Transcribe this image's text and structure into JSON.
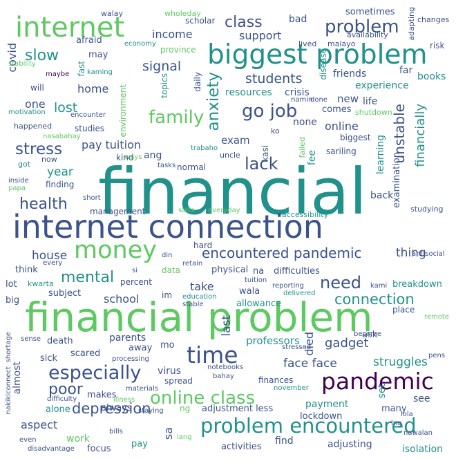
{
  "word_cloud": {
    "background": "#ffffff",
    "palette": [
      "#440154",
      "#3b528b",
      "#21918c",
      "#5ec962",
      "#fde725"
    ],
    "words": [
      {
        "text": "financial",
        "color": "#21918c"
      },
      {
        "text": "internet connection",
        "color": "#3b528b"
      },
      {
        "text": "financial problem",
        "color": "#5ec962"
      },
      {
        "text": "biggest problem",
        "color": "#21918c"
      },
      {
        "text": "internet",
        "color": "#5ec962"
      },
      {
        "text": "problem encountered",
        "color": "#21918c"
      },
      {
        "text": "pandemic",
        "color": "#440154"
      },
      {
        "text": "money",
        "color": "#5ec962"
      },
      {
        "text": "time",
        "color": "#3b528b"
      },
      {
        "text": "online class",
        "color": "#5ec962"
      },
      {
        "text": "especially",
        "color": "#3b528b"
      },
      {
        "text": "encountered pandemic",
        "color": "#3b528b"
      },
      {
        "text": "go job",
        "color": "#3b528b"
      },
      {
        "text": "family",
        "color": "#5ec962"
      },
      {
        "text": "anxiety",
        "color": "#21918c"
      },
      {
        "text": "lack",
        "color": "#3b528b"
      },
      {
        "text": "problem",
        "color": "#3b528b"
      },
      {
        "text": "class",
        "color": "#3b528b"
      },
      {
        "text": "unstable",
        "color": "#3b528b"
      },
      {
        "text": "financially",
        "color": "#21918c"
      },
      {
        "text": "need",
        "color": "#3b528b"
      },
      {
        "text": "connection",
        "color": "#21918c"
      },
      {
        "text": "stress",
        "color": "#3b528b"
      },
      {
        "text": "health",
        "color": "#3b528b"
      },
      {
        "text": "mental",
        "color": "#21918c"
      },
      {
        "text": "poor",
        "color": "#3b528b"
      },
      {
        "text": "depression",
        "color": "#3b528b"
      },
      {
        "text": "slow",
        "color": "#21918c"
      },
      {
        "text": "students",
        "color": "#3b528b"
      },
      {
        "text": "signal",
        "color": "#3b528b"
      },
      {
        "text": "house",
        "color": "#3b528b"
      },
      {
        "text": "lost",
        "color": "#21918c"
      },
      {
        "text": "gadget",
        "color": "#3b528b"
      },
      {
        "text": "face face",
        "color": "#3b528b"
      },
      {
        "text": "struggles",
        "color": "#21918c"
      },
      {
        "text": "thing",
        "color": "#3b528b"
      },
      {
        "text": "last",
        "color": "#3b528b"
      },
      {
        "text": "died",
        "color": "#3b528b"
      },
      {
        "text": "sa",
        "color": "#3b528b"
      },
      {
        "text": "covid",
        "color": "#3b528b"
      },
      {
        "text": "pay tuition",
        "color": "#3b528b"
      },
      {
        "text": "year",
        "color": "#21918c"
      },
      {
        "text": "online",
        "color": "#3b528b"
      },
      {
        "text": "exam",
        "color": "#3b528b"
      },
      {
        "text": "support",
        "color": "#3b528b"
      },
      {
        "text": "income",
        "color": "#3b528b"
      },
      {
        "text": "home",
        "color": "#3b528b"
      },
      {
        "text": "one",
        "color": "#3b528b"
      },
      {
        "text": "school",
        "color": "#3b528b"
      },
      {
        "text": "take",
        "color": "#3b528b"
      },
      {
        "text": "parents",
        "color": "#3b528b"
      },
      {
        "text": "professors",
        "color": "#21918c"
      },
      {
        "text": "aspect",
        "color": "#3b528b"
      },
      {
        "text": "work",
        "color": "#5ec962"
      },
      {
        "text": "virus",
        "color": "#3b528b"
      },
      {
        "text": "bad",
        "color": "#3b528b"
      },
      {
        "text": "new",
        "color": "#3b528b"
      },
      {
        "text": "life",
        "color": "#3b528b"
      },
      {
        "text": "fee",
        "color": "#21918c"
      },
      {
        "text": "none",
        "color": "#3b528b"
      },
      {
        "text": "ang",
        "color": "#3b528b"
      },
      {
        "text": "far",
        "color": "#3b528b"
      },
      {
        "text": "friends",
        "color": "#3b528b"
      },
      {
        "text": "books",
        "color": "#21918c"
      },
      {
        "text": "experience",
        "color": "#21918c"
      },
      {
        "text": "comes",
        "color": "#3b528b"
      },
      {
        "text": "crisis",
        "color": "#3b528b"
      },
      {
        "text": "resources",
        "color": "#21918c"
      },
      {
        "text": "learning",
        "color": "#21918c"
      },
      {
        "text": "examination",
        "color": "#3b528b"
      },
      {
        "text": "back",
        "color": "#3b528b"
      },
      {
        "text": "payment",
        "color": "#21918c"
      },
      {
        "text": "set",
        "color": "#21918c"
      },
      {
        "text": "see",
        "color": "#3b528b"
      },
      {
        "text": "many",
        "color": "#3b528b"
      },
      {
        "text": "lockdown",
        "color": "#3b528b"
      },
      {
        "text": "adjusting",
        "color": "#3b528b"
      },
      {
        "text": "isolation",
        "color": "#21918c"
      },
      {
        "text": "find",
        "color": "#3b528b"
      },
      {
        "text": "activities",
        "color": "#3b528b"
      },
      {
        "text": "adjustment less",
        "color": "#3b528b"
      },
      {
        "text": "focus",
        "color": "#3b528b"
      },
      {
        "text": "pay",
        "color": "#21918c"
      },
      {
        "text": "alone",
        "color": "#21918c"
      },
      {
        "text": "always",
        "color": "#3b528b"
      },
      {
        "text": "makes",
        "color": "#3b528b"
      },
      {
        "text": "sick",
        "color": "#3b528b"
      },
      {
        "text": "almost",
        "color": "#3b528b"
      },
      {
        "text": "scared",
        "color": "#3b528b"
      },
      {
        "text": "away",
        "color": "#3b528b"
      },
      {
        "text": "mo",
        "color": "#3b528b"
      },
      {
        "text": "death",
        "color": "#3b528b"
      },
      {
        "text": "subject",
        "color": "#3b528b"
      },
      {
        "text": "lot",
        "color": "#3b528b"
      },
      {
        "text": "big",
        "color": "#3b528b"
      },
      {
        "text": "think",
        "color": "#3b528b"
      },
      {
        "text": "kwarta",
        "color": "#21918c"
      },
      {
        "text": "percent",
        "color": "#3b528b"
      },
      {
        "text": "data",
        "color": "#5ec962"
      },
      {
        "text": "physical",
        "color": "#3b528b"
      },
      {
        "text": "na",
        "color": "#3b528b"
      },
      {
        "text": "difficulties",
        "color": "#3b528b"
      },
      {
        "text": "wala",
        "color": "#3b528b"
      },
      {
        "text": "allowance",
        "color": "#21918c"
      },
      {
        "text": "breakdown",
        "color": "#21918c"
      },
      {
        "text": "place",
        "color": "#3b528b"
      },
      {
        "text": "ask",
        "color": "#3b528b"
      },
      {
        "text": "finances",
        "color": "#3b528b"
      },
      {
        "text": "spread",
        "color": "#3b528b"
      },
      {
        "text": "hard",
        "color": "#3b528b"
      },
      {
        "text": "management",
        "color": "#3b528b"
      },
      {
        "text": "finding",
        "color": "#3b528b"
      },
      {
        "text": "normal",
        "color": "#3b528b"
      },
      {
        "text": "studies",
        "color": "#3b528b"
      },
      {
        "text": "happened",
        "color": "#3b528b"
      },
      {
        "text": "got",
        "color": "#21918c"
      },
      {
        "text": "now",
        "color": "#3b528b"
      },
      {
        "text": "kind",
        "color": "#3b528b"
      },
      {
        "text": "afraid",
        "color": "#3b528b"
      },
      {
        "text": "may",
        "color": "#3b528b"
      },
      {
        "text": "will",
        "color": "#3b528b"
      },
      {
        "text": "fast",
        "color": "#21918c"
      },
      {
        "text": "environment",
        "color": "#5ec962"
      },
      {
        "text": "province",
        "color": "#5ec962"
      },
      {
        "text": "topics",
        "color": "#21918c"
      },
      {
        "text": "daily",
        "color": "#3b528b"
      },
      {
        "text": "disease",
        "color": "#21918c"
      },
      {
        "text": "biggest",
        "color": "#3b528b"
      },
      {
        "text": "kasi",
        "color": "#3b528b"
      },
      {
        "text": "ko",
        "color": "#3b528b"
      },
      {
        "text": "failed",
        "color": "#5ec962"
      },
      {
        "text": "sariling",
        "color": "#3b528b"
      },
      {
        "text": "uncle",
        "color": "#3b528b"
      },
      {
        "text": "trabaho",
        "color": "#21918c"
      },
      {
        "text": "shutdown",
        "color": "#5ec962"
      },
      {
        "text": "scholar",
        "color": "#3b528b"
      },
      {
        "text": "economy",
        "color": "#21918c"
      },
      {
        "text": "lived",
        "color": "#3b528b"
      },
      {
        "text": "malayo",
        "color": "#3b528b"
      },
      {
        "text": "availability",
        "color": "#3b528b"
      },
      {
        "text": "risk",
        "color": "#3b528b"
      },
      {
        "text": "sometimes",
        "color": "#3b528b"
      },
      {
        "text": "adapting",
        "color": "#3b528b"
      },
      {
        "text": "changes",
        "color": "#3b528b"
      },
      {
        "text": "walay",
        "color": "#3b528b"
      },
      {
        "text": "wholeday",
        "color": "#5ec962"
      },
      {
        "text": "stability",
        "color": "#5ec962"
      },
      {
        "text": "maybe",
        "color": "#440154"
      },
      {
        "text": "kaming",
        "color": "#21918c"
      },
      {
        "text": "motivation",
        "color": "#21918c"
      },
      {
        "text": "encounter",
        "color": "#3b528b"
      },
      {
        "text": "nasabahay",
        "color": "#5ec962"
      },
      {
        "text": "namin",
        "color": "#3b528b"
      },
      {
        "text": "done",
        "color": "#3b528b"
      },
      {
        "text": "ways",
        "color": "#5ec962"
      },
      {
        "text": "tasks",
        "color": "#3b528b"
      },
      {
        "text": "inside",
        "color": "#3b528b"
      },
      {
        "text": "papa",
        "color": "#5ec962"
      },
      {
        "text": "short",
        "color": "#3b528b"
      },
      {
        "text": "suits",
        "color": "#5ec962"
      },
      {
        "text": "everyday",
        "color": "#5ec962"
      },
      {
        "text": "accessibility",
        "color": "#21918c"
      },
      {
        "text": "studying",
        "color": "#3b528b"
      },
      {
        "text": "din",
        "color": "#3b528b"
      },
      {
        "text": "retain",
        "color": "#3b528b"
      },
      {
        "text": "si",
        "color": "#3b528b"
      },
      {
        "text": "antisocial",
        "color": "#3b528b"
      },
      {
        "text": "every",
        "color": "#3b528b"
      },
      {
        "text": "tuition",
        "color": "#3b528b"
      },
      {
        "text": "reporting",
        "color": "#3b528b"
      },
      {
        "text": "delivered",
        "color": "#21918c"
      },
      {
        "text": "kami",
        "color": "#3b528b"
      },
      {
        "text": "education",
        "color": "#21918c"
      },
      {
        "text": "stable",
        "color": "#3b528b"
      },
      {
        "text": "im",
        "color": "#3b528b"
      },
      {
        "text": "remote",
        "color": "#5ec962"
      },
      {
        "text": "shortage",
        "color": "#3b528b"
      },
      {
        "text": "sense",
        "color": "#3b528b"
      },
      {
        "text": "nakikiconnect",
        "color": "#3b528b"
      },
      {
        "text": "stressed",
        "color": "#3b528b"
      },
      {
        "text": "become",
        "color": "#3b528b"
      },
      {
        "text": "processing",
        "color": "#3b528b"
      },
      {
        "text": "notebooks",
        "color": "#3b528b"
      },
      {
        "text": "bahay",
        "color": "#3b528b"
      },
      {
        "text": "november",
        "color": "#21918c"
      },
      {
        "text": "pens",
        "color": "#3b528b"
      },
      {
        "text": "difficulty",
        "color": "#3b528b"
      },
      {
        "text": "illness",
        "color": "#5ec962"
      },
      {
        "text": "materials",
        "color": "#3b528b"
      },
      {
        "text": "staying",
        "color": "#3b528b"
      },
      {
        "text": "ng",
        "color": "#5ec962"
      },
      {
        "text": "lola",
        "color": "#3b528b"
      },
      {
        "text": "lng",
        "color": "#3b528b"
      },
      {
        "text": "nawalan",
        "color": "#3b528b"
      },
      {
        "text": "bills",
        "color": "#3b528b"
      },
      {
        "text": "lang",
        "color": "#5ec962"
      },
      {
        "text": "even",
        "color": "#3b528b"
      },
      {
        "text": "disadvantage",
        "color": "#3b528b"
      }
    ]
  }
}
